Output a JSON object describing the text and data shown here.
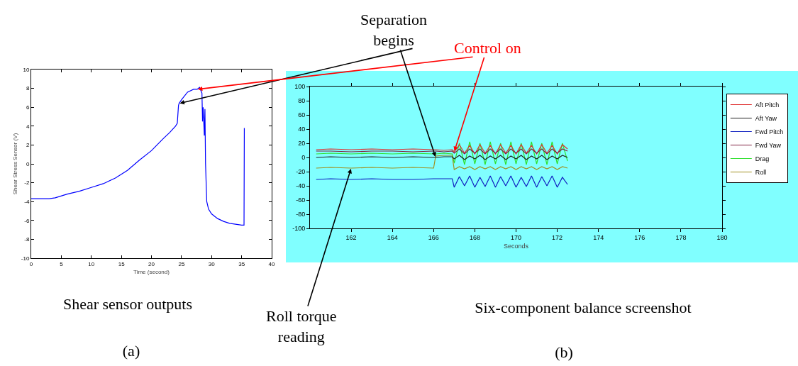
{
  "chart_data": [
    {
      "type": "line",
      "xlabel": "Time (second)",
      "ylabel": "Shear Stress Sensor (V)",
      "xlim": [
        0,
        40
      ],
      "xticks": [
        0,
        5,
        10,
        15,
        20,
        25,
        30,
        35,
        40
      ],
      "ylim": [
        -10,
        10
      ],
      "yticks": [
        -10,
        -8,
        -6,
        -4,
        -2,
        0,
        2,
        4,
        6,
        8,
        10
      ],
      "x": [
        0,
        3,
        4,
        6,
        8,
        10,
        12,
        14,
        16,
        18,
        20,
        22,
        23,
        24,
        24.3,
        24.5,
        24.6,
        25,
        26,
        27,
        27.6,
        28,
        28.4,
        28.5,
        28.6,
        28.8,
        28.9,
        29,
        29.2,
        29.5,
        30,
        31,
        32,
        33,
        34,
        35,
        35.4,
        35.45
      ],
      "series": [
        {
          "color": "#0000ff",
          "values": [
            -3.7,
            -3.7,
            -3.6,
            -3.2,
            -2.9,
            -2.5,
            -2.1,
            -1.5,
            -0.7,
            0.4,
            1.4,
            2.7,
            3.3,
            4.0,
            4.3,
            6.2,
            6.4,
            6.8,
            7.6,
            7.9,
            7.9,
            8.1,
            7.5,
            4.5,
            6.0,
            3.0,
            5.8,
            0,
            -4,
            -4.8,
            -5.3,
            -5.8,
            -6.1,
            -6.3,
            -6.4,
            -6.5,
            -6.5,
            3.8
          ]
        }
      ],
      "annotations": [
        "Shear sensor outputs",
        "(a)"
      ]
    },
    {
      "type": "line",
      "xlabel": "Seconds",
      "xlim": [
        160,
        180
      ],
      "xticks": [
        162,
        164,
        166,
        168,
        170,
        172,
        174,
        176,
        178,
        180
      ],
      "ylim": [
        -100,
        100
      ],
      "yticks": [
        -100,
        -80,
        -60,
        -40,
        -20,
        0,
        20,
        40,
        60,
        80,
        100
      ],
      "legend": "right",
      "x": [
        160.3,
        161,
        162,
        163,
        164,
        165,
        166,
        166.1,
        166.5,
        166.9,
        167,
        167.25,
        167.5,
        167.75,
        168,
        168.25,
        168.5,
        168.75,
        169,
        169.25,
        169.5,
        169.75,
        170,
        170.25,
        170.5,
        170.75,
        171,
        171.25,
        171.5,
        171.75,
        172,
        172.25,
        172.5
      ],
      "series": [
        {
          "name": "Aft Pitch",
          "color": "#e03030",
          "values": [
            11,
            12,
            11,
            12,
            11,
            12,
            11,
            11,
            10,
            11,
            8,
            18,
            6,
            17,
            5,
            18,
            6,
            17,
            5,
            18,
            6,
            17,
            5,
            18,
            6,
            17,
            5,
            18,
            6,
            17,
            5,
            18,
            12
          ]
        },
        {
          "name": "Aft Yaw",
          "color": "#202020",
          "values": [
            0,
            1,
            0,
            1,
            0,
            1,
            0,
            0,
            1,
            1,
            -2,
            3,
            -3,
            2,
            -2,
            3,
            -3,
            2,
            -2,
            3,
            -3,
            2,
            -2,
            3,
            -3,
            2,
            -2,
            3,
            -3,
            2,
            -2,
            3,
            0
          ]
        },
        {
          "name": "Fwd Pitch",
          "color": "#1020c0",
          "values": [
            -31,
            -30,
            -31,
            -30,
            -31,
            -31,
            -30,
            -30,
            -30,
            -30,
            -42,
            -27,
            -40,
            -26,
            -42,
            -28,
            -41,
            -26,
            -42,
            -27,
            -40,
            -26,
            -42,
            -28,
            -41,
            -26,
            -42,
            -27,
            -40,
            -26,
            -42,
            -28,
            -38
          ]
        },
        {
          "name": "Fwd Yaw",
          "color": "#802040",
          "values": [
            9,
            9,
            8,
            9,
            9,
            8,
            9,
            9,
            8,
            9,
            6,
            12,
            5,
            12,
            6,
            12,
            5,
            12,
            6,
            12,
            5,
            12,
            6,
            12,
            5,
            12,
            6,
            12,
            5,
            12,
            6,
            12,
            9
          ]
        },
        {
          "name": "Drag",
          "color": "#30e030",
          "values": [
            5,
            6,
            5,
            6,
            5,
            6,
            5,
            5,
            6,
            5,
            -8,
            20,
            -10,
            22,
            -9,
            20,
            -10,
            22,
            -9,
            20,
            -10,
            22,
            -9,
            20,
            -10,
            22,
            -9,
            20,
            -10,
            22,
            -9,
            20,
            -5
          ]
        },
        {
          "name": "Roll",
          "color": "#a09020",
          "values": [
            -15,
            -14,
            -15,
            -14,
            -15,
            -14,
            -15,
            2,
            3,
            3,
            -17,
            -13,
            -16,
            -13,
            -17,
            -13,
            -16,
            -13,
            -17,
            -13,
            -16,
            -13,
            -17,
            -13,
            -16,
            -13,
            -17,
            -13,
            -16,
            -13,
            -17,
            -13,
            -15
          ]
        }
      ],
      "annotations": [
        {
          "text": "Separation begins",
          "x": 166.1,
          "y": 0
        },
        {
          "text": "Control on",
          "x": 167,
          "y": 8
        },
        {
          "text": "Roll torque reading",
          "x": 162,
          "y": -15
        },
        "Six-component balance screenshot",
        "(b)"
      ]
    }
  ]
}
